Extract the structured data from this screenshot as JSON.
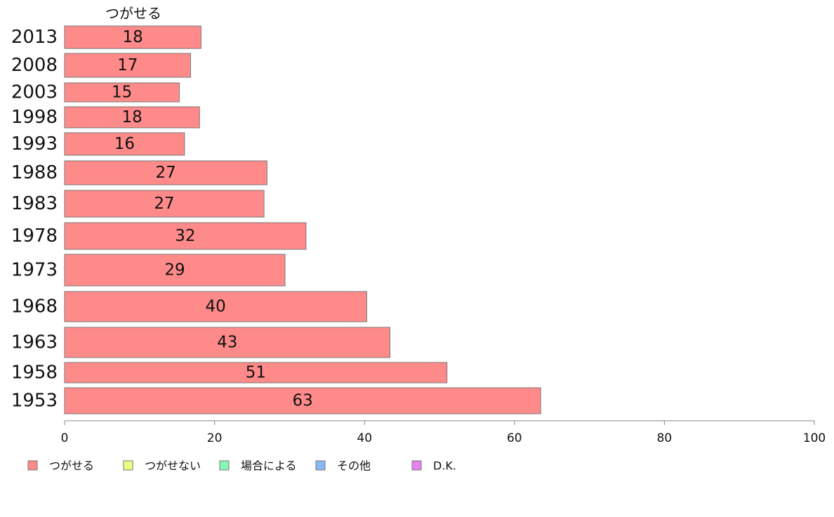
{
  "chart_data": {
    "type": "bar",
    "orientation": "horizontal",
    "stacked": true,
    "categories": [
      "2013",
      "2008",
      "2003",
      "1998",
      "1993",
      "1988",
      "1983",
      "1978",
      "1973",
      "1968",
      "1963",
      "1958",
      "1953"
    ],
    "series": [
      {
        "name": "つがせる",
        "color": "#ff8a8a",
        "values": [
          18.2,
          16.8,
          15.3,
          18.0,
          16.0,
          27.0,
          26.6,
          32.2,
          29.4,
          40.3,
          43.4,
          51.0,
          63.5
        ],
        "labels": [
          "18",
          "17",
          "15",
          "18",
          "16",
          "27",
          "27",
          "32",
          "29",
          "40",
          "43",
          "51",
          "63"
        ]
      }
    ],
    "series_title": "つがせる",
    "legend": [
      {
        "name": "つがせる",
        "color": "#ff8a8a"
      },
      {
        "name": "つがせない",
        "color": "#e8ff80"
      },
      {
        "name": "場合による",
        "color": "#88f5b8"
      },
      {
        "name": "その他",
        "color": "#88b8f5"
      },
      {
        "name": "D.K.",
        "color": "#e880f0"
      }
    ],
    "xlim": [
      0,
      100
    ],
    "xticks": [
      0,
      20,
      40,
      60,
      80,
      100
    ],
    "grid": false,
    "legend_position": "bottom"
  }
}
